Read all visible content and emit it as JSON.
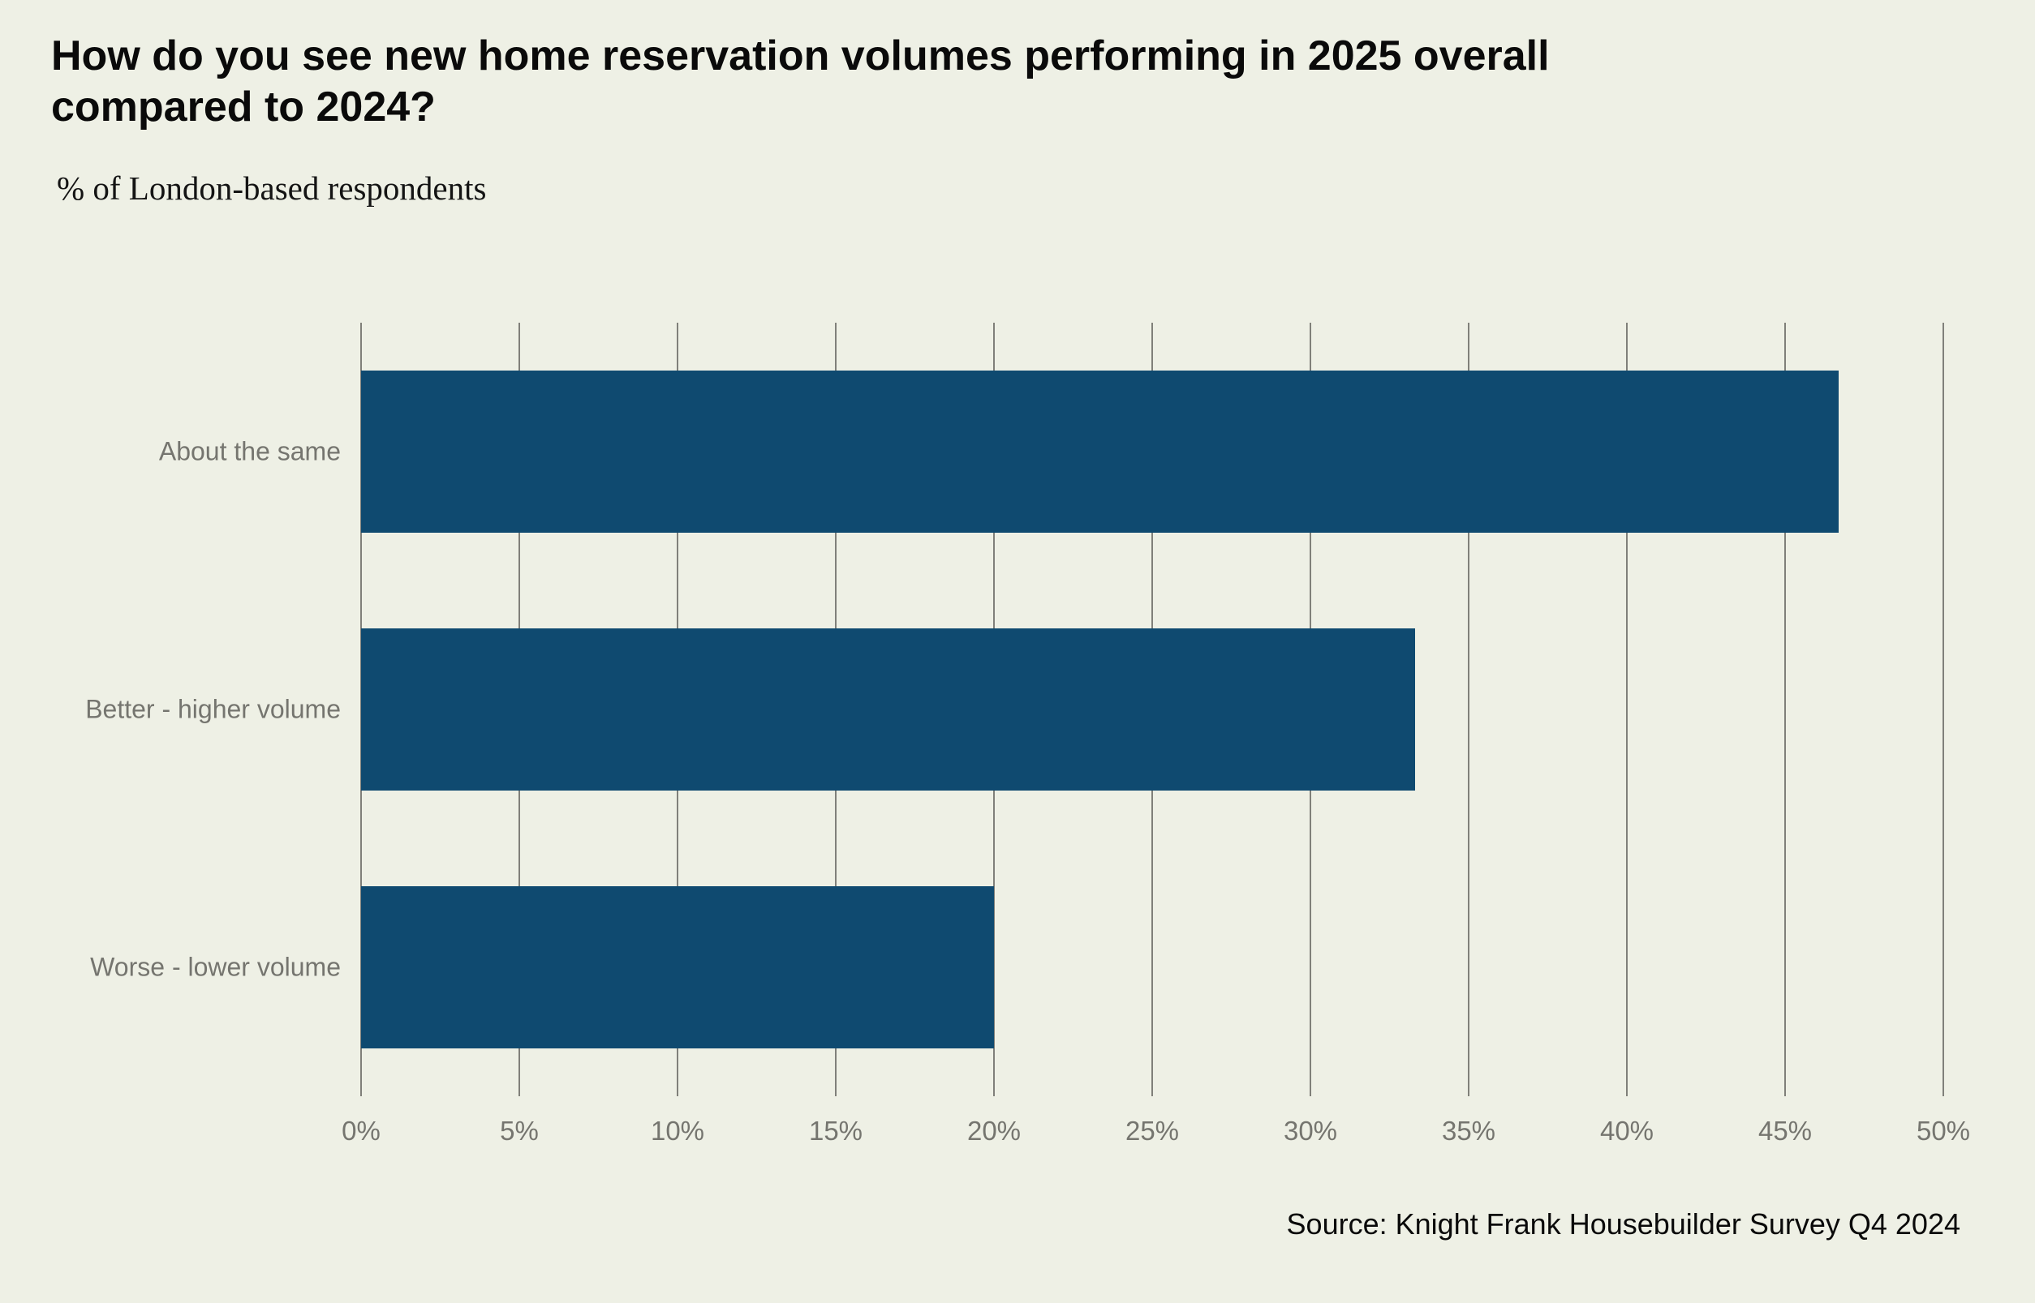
{
  "page": {
    "background_color": "#EEF0E5"
  },
  "chart_data": {
    "type": "bar",
    "orientation": "horizontal",
    "title": "How do you see new home reservation volumes performing in 2025 overall compared to 2024?",
    "subtitle": "% of London-based respondents",
    "categories": [
      "About the same",
      "Better - higher volume",
      "Worse - lower volume"
    ],
    "values": [
      46.7,
      33.3,
      20
    ],
    "value_unit": "%",
    "xlabel": "",
    "ylabel": "",
    "xlim": [
      0,
      50
    ],
    "x_ticks": [
      0,
      5,
      10,
      15,
      20,
      25,
      30,
      35,
      40,
      45,
      50
    ],
    "x_tick_suffix": "%",
    "grid": "vertical-major",
    "legend": "none",
    "source": "Source: Knight Frank Housebuilder Survey Q4 2024",
    "colors": {
      "bar": "#0F4A70",
      "gridline": "#80807A",
      "axis_labels": "#75756F",
      "title": "#0A0A0A",
      "subtitle": "#141414",
      "source": "#0A0A0A"
    }
  }
}
